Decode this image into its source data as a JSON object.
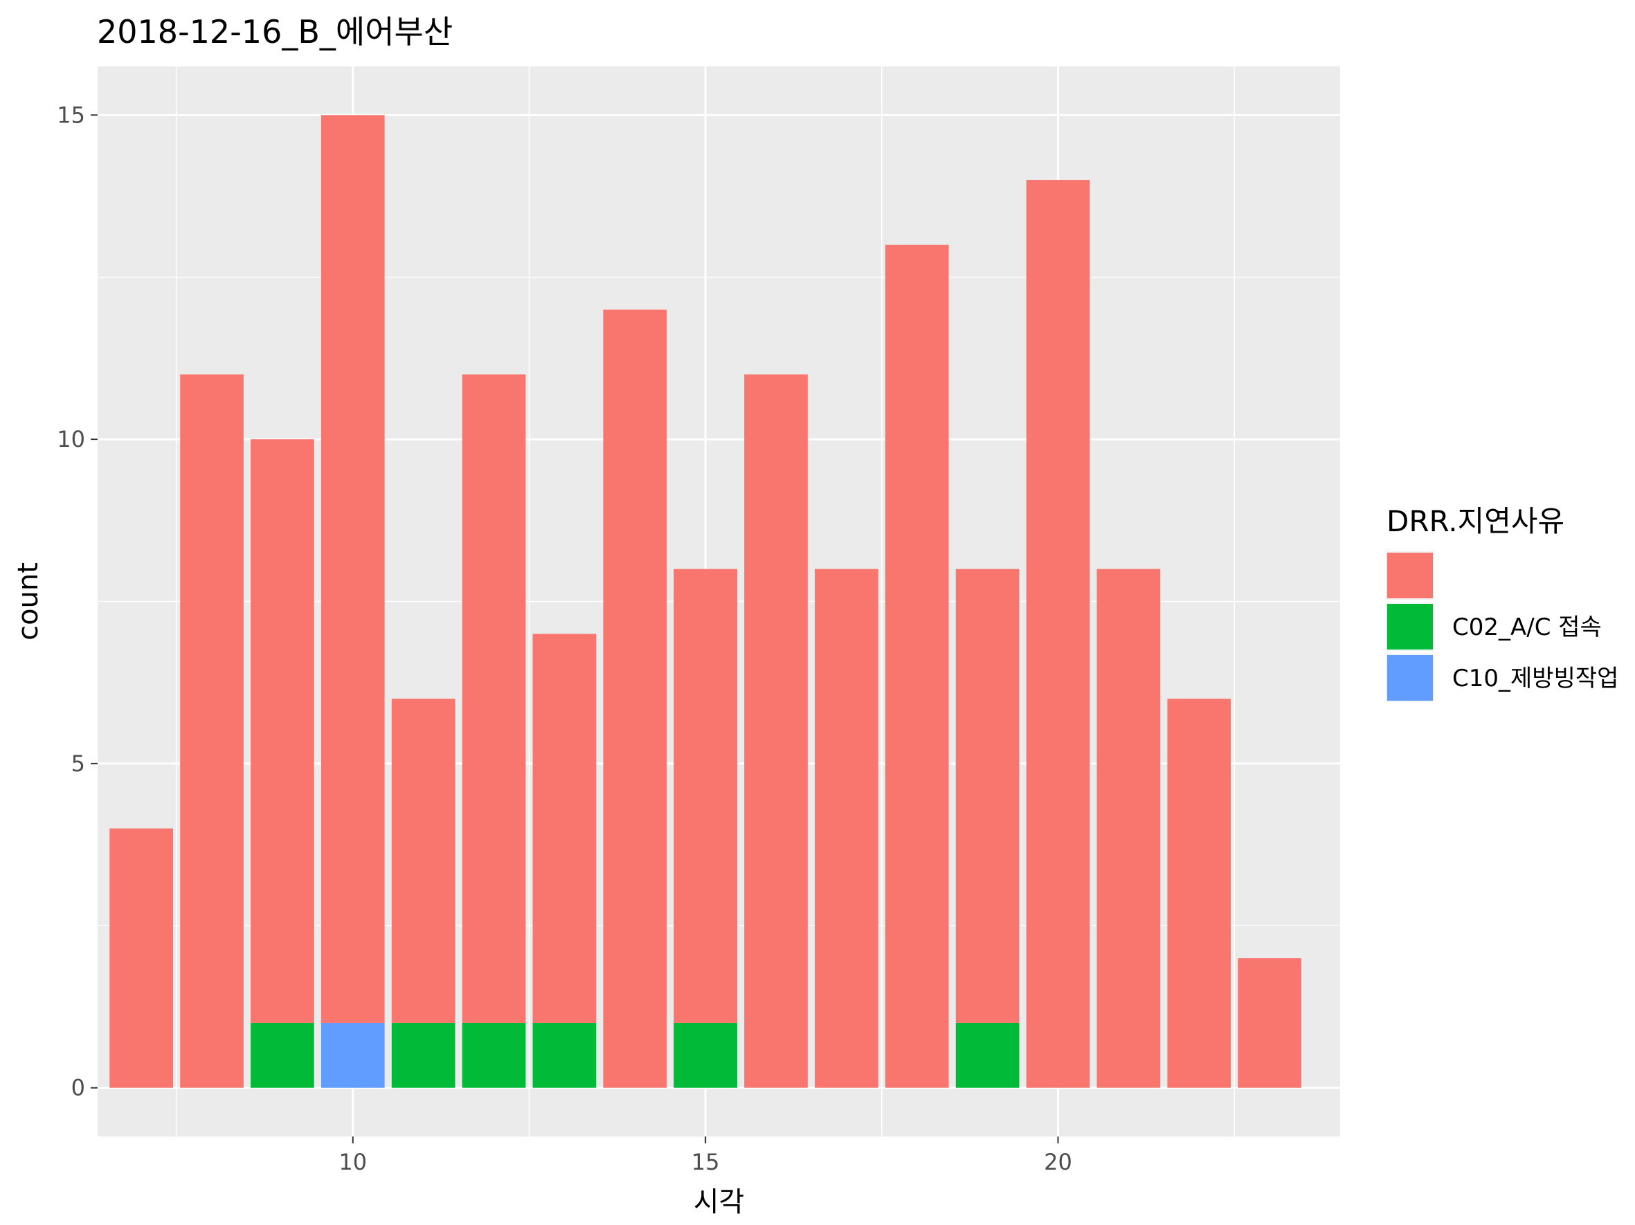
{
  "chart_data": {
    "type": "bar",
    "stacked": true,
    "title": "2018-12-16_B_에어부산",
    "xlabel": "시각",
    "ylabel": "count",
    "x": [
      7,
      8,
      9,
      10,
      11,
      12,
      13,
      14,
      15,
      16,
      17,
      18,
      19,
      20,
      21,
      22,
      23
    ],
    "xticks": [
      10,
      15,
      20
    ],
    "yticks": [
      0,
      5,
      10,
      15
    ],
    "xlim": [
      2.7,
      21.4
    ],
    "ylim": [
      -0.75,
      15.75
    ],
    "grid": true,
    "legend": {
      "title": "DRR.지연사유",
      "placement": "right"
    },
    "series": [
      {
        "name": "",
        "color": "#F8766D",
        "values": [
          4,
          11,
          9,
          14,
          5,
          10,
          6,
          12,
          7,
          11,
          8,
          13,
          7,
          14,
          8,
          6,
          2
        ]
      },
      {
        "name": "C02_A/C 접속",
        "color": "#00BA38",
        "values": [
          0,
          0,
          1,
          0,
          1,
          1,
          1,
          0,
          1,
          0,
          0,
          0,
          1,
          0,
          0,
          0,
          0
        ]
      },
      {
        "name": "C10_제방빙작업",
        "color": "#619CFF",
        "values": [
          0,
          0,
          0,
          1,
          0,
          0,
          0,
          0,
          0,
          0,
          0,
          0,
          0,
          0,
          0,
          0,
          0
        ]
      }
    ]
  }
}
